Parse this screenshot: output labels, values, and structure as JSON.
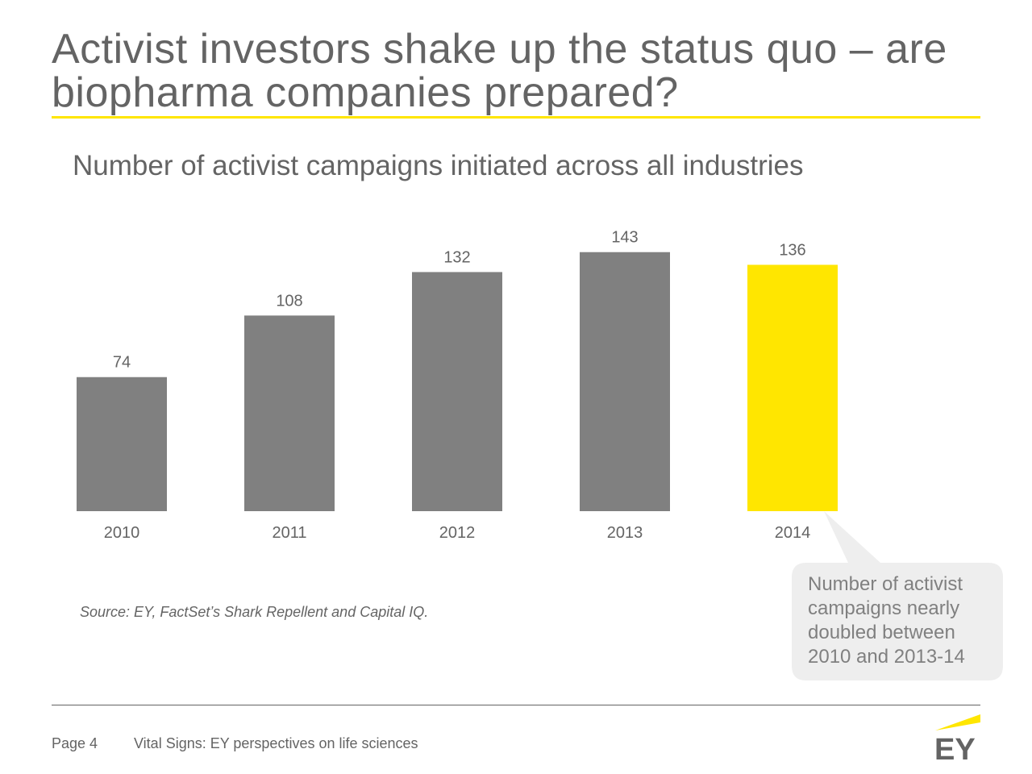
{
  "slide": {
    "title": "Activist investors shake up the status quo – are biopharma companies prepared?",
    "subtitle": "Number of activist campaigns initiated across all industries"
  },
  "chart_data": {
    "type": "bar",
    "title": "Number of activist campaigns initiated across all industries",
    "categories": [
      "2010",
      "2011",
      "2012",
      "2013",
      "2014"
    ],
    "values": [
      74,
      108,
      132,
      143,
      136
    ],
    "ylim": [
      0,
      150
    ],
    "grid": false,
    "data_labels": true,
    "colors": {
      "default_bar": "#808080",
      "highlight_bar": "#ffe600",
      "highlight_category": "2014",
      "label_text": "#646464"
    }
  },
  "callout": {
    "text": "Number of activist campaigns nearly doubled between 2010 and 2013-14"
  },
  "source": "Source: EY, FactSet’s Shark Repellent and Capital IQ.",
  "footer": {
    "page": "Page 4",
    "publication": "Vital Signs: EY perspectives on life sciences",
    "logo_text": "EY",
    "logo_icon": "ey-logo-icon"
  },
  "colors": {
    "accent": "#ffe600",
    "text": "#646464",
    "callout_bg": "#eeeeee"
  }
}
